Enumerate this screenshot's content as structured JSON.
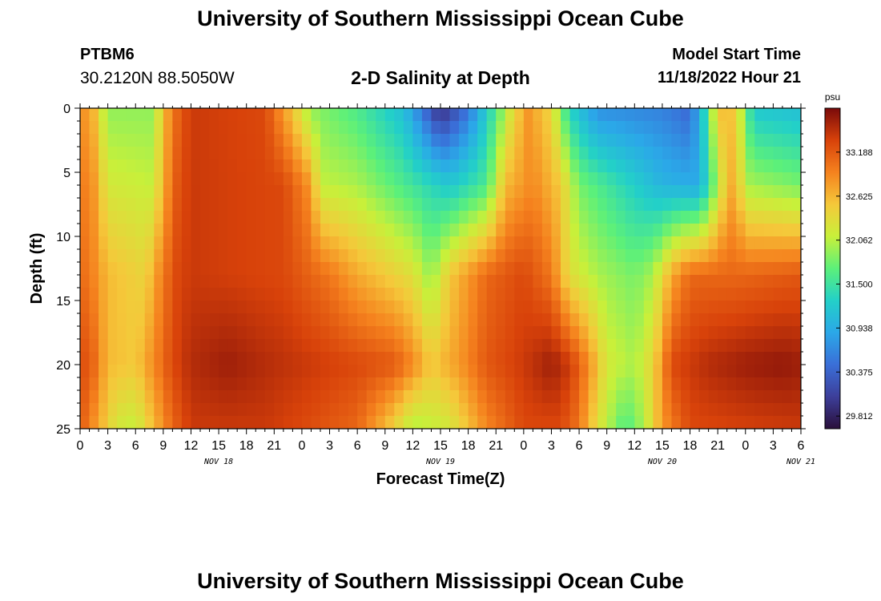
{
  "header": {
    "title": "University of Southern Mississippi Ocean Cube",
    "station_id": "PTBM6",
    "coordinates": "30.2120N  88.5050W",
    "subtitle": "2-D Salinity at Depth",
    "model_start_label": "Model Start Time",
    "model_start_value": "11/18/2022 Hour 21"
  },
  "footer": {
    "title": "University of Southern Mississippi Ocean Cube"
  },
  "chart_data": {
    "type": "heatmap",
    "title": "2-D Salinity at Depth",
    "xlabel": "Forecast Time(Z)",
    "ylabel": "Depth (ft)",
    "x_tick_labels": [
      "0",
      "3",
      "6",
      "9",
      "12",
      "15",
      "18",
      "21",
      "0",
      "3",
      "6",
      "9",
      "12",
      "15",
      "18",
      "21",
      "0",
      "3",
      "6",
      "9",
      "12",
      "15",
      "18",
      "21",
      "0",
      "3",
      "6"
    ],
    "x_date_labels": [
      {
        "label": "NOV 18",
        "hour_index": 5
      },
      {
        "label": "NOV 19",
        "hour_index": 13
      },
      {
        "label": "NOV 20",
        "hour_index": 21
      },
      {
        "label": "NOV 21",
        "hour_index": 26
      }
    ],
    "x_range_hours": [
      0,
      78
    ],
    "y_range_ft": [
      0,
      25
    ],
    "y_ticks": [
      0,
      5,
      10,
      15,
      20,
      25
    ],
    "colorbar": {
      "unit": "psu",
      "ticks": [
        29.812,
        30.375,
        30.938,
        31.5,
        32.062,
        32.625,
        33.188
      ],
      "tick_labels": [
        "29.812",
        "30.375",
        "30.938",
        "31.500",
        "32.062",
        "32.625",
        "33.188"
      ],
      "range": [
        29.65,
        33.75
      ]
    },
    "colors": {
      "stops": [
        "#2a0f3a",
        "#3d3f9a",
        "#3a6fd8",
        "#2ba8e8",
        "#23d0c8",
        "#5cf07a",
        "#c8f03a",
        "#f5c83a",
        "#f5821e",
        "#d8420a",
        "#7a0a0a"
      ]
    },
    "field_features": [
      {
        "kind": "high",
        "t_hours": 16,
        "depth_ft": 20,
        "value": 33.6
      },
      {
        "kind": "high",
        "t_hours": 17,
        "depth_ft": 6,
        "value": 33.4
      },
      {
        "kind": "high",
        "t_hours": 33,
        "depth_ft": 19,
        "value": 33.2
      },
      {
        "kind": "high",
        "t_hours": 51,
        "depth_ft": 20,
        "value": 33.6
      },
      {
        "kind": "high",
        "t_hours": 76,
        "depth_ft": 22,
        "value": 33.65
      },
      {
        "kind": "low",
        "t_hours": 5,
        "depth_ft": 3,
        "value": 31.9
      },
      {
        "kind": "low",
        "t_hours": 39,
        "depth_ft": 0,
        "value": 29.9
      },
      {
        "kind": "low",
        "t_hours": 66,
        "depth_ft": 3,
        "value": 30.4
      },
      {
        "kind": "low",
        "t_hours": 75,
        "depth_ft": 4,
        "value": 31.1
      }
    ]
  }
}
